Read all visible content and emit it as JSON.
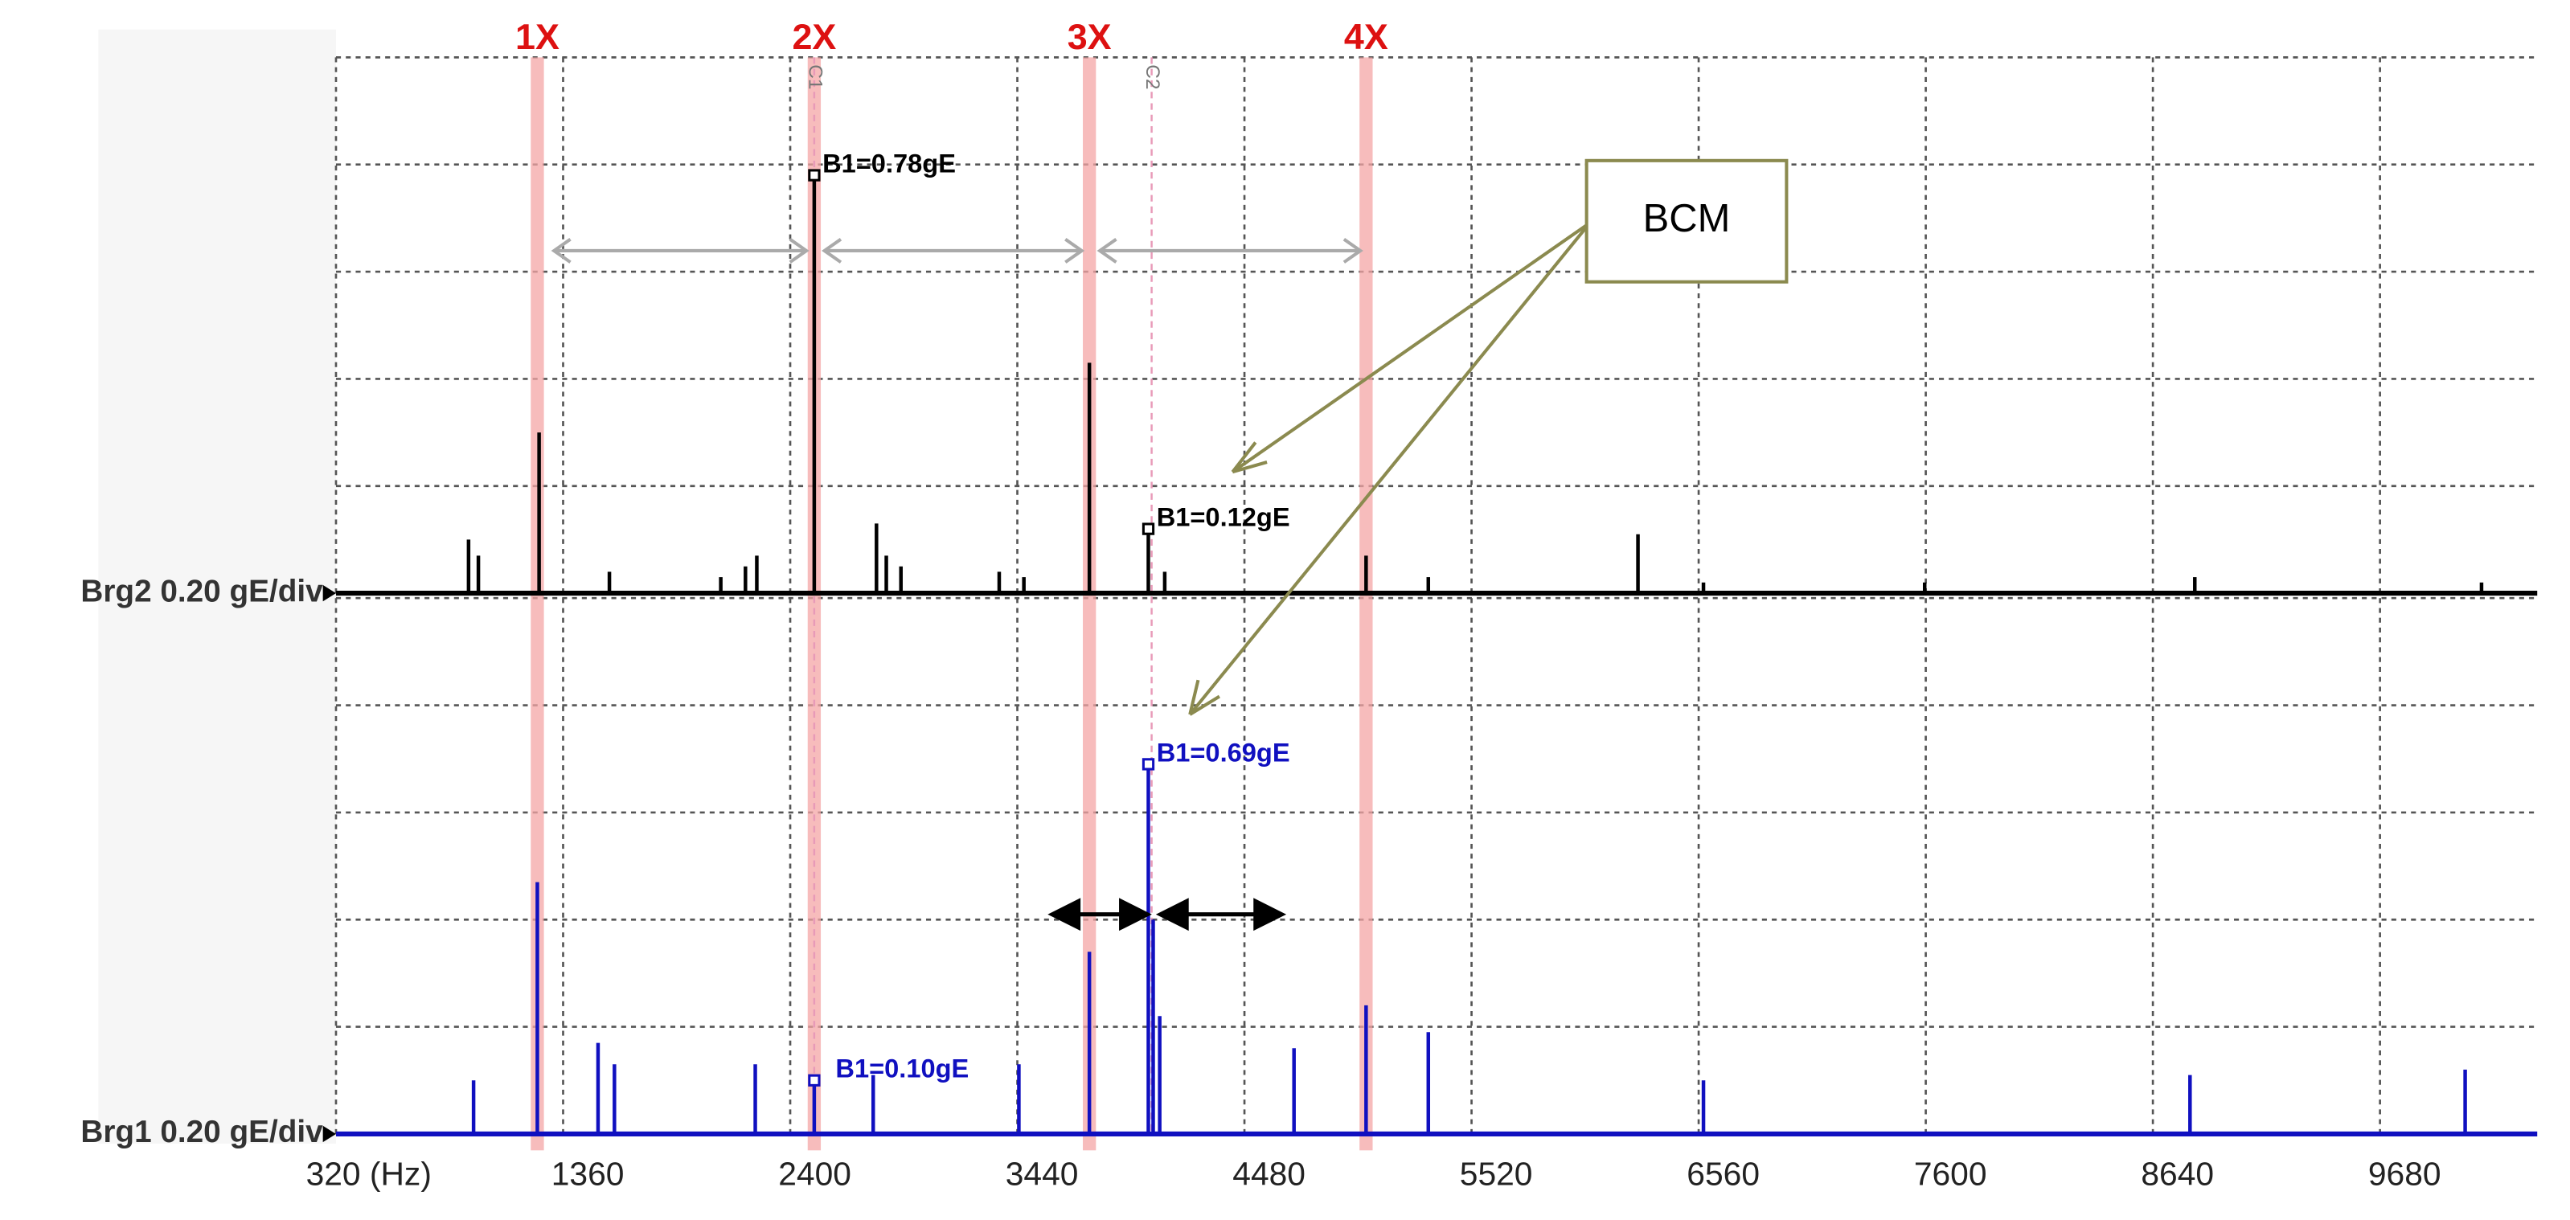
{
  "chart_data": {
    "type": "spectrum",
    "xlim": [
      320,
      10400
    ],
    "xticks": [
      {
        "value": 320,
        "label": "320 (Hz)"
      },
      1360,
      2400,
      3440,
      4480,
      5520,
      6560,
      7600,
      8640,
      9680
    ],
    "ylim": [
      0,
      1.0
    ],
    "yticks": [
      0,
      0.2,
      0.4,
      0.6,
      0.8,
      1.0
    ],
    "grid": true,
    "harmonics": {
      "labels": [
        "1X",
        "2X",
        "3X",
        "4X"
      ],
      "x": [
        1242,
        2510,
        3770,
        5037
      ],
      "color": "#f4a6a6"
    },
    "cursors": {
      "labels": [
        "C1",
        "C2"
      ],
      "x": [
        2510,
        4055
      ]
    },
    "callout": "BCM",
    "series": [
      {
        "name": "Brg2 0.20 gE/div",
        "color": "#000000",
        "x": [
          927,
          972,
          1250,
          1572,
          2082,
          2195,
          2247,
          2510,
          2795,
          2840,
          2907,
          3357,
          3470,
          3770,
          4040,
          4115,
          5037,
          5322,
          6282,
          6582,
          7595,
          8832,
          10145
        ],
        "values": [
          0.1,
          0.07,
          0.3,
          0.04,
          0.03,
          0.05,
          0.07,
          0.78,
          0.13,
          0.07,
          0.05,
          0.04,
          0.03,
          0.43,
          0.12,
          0.04,
          0.07,
          0.03,
          0.11,
          0.02,
          0.02,
          0.03,
          0.02
        ],
        "value_labels": [
          null,
          null,
          null,
          null,
          null,
          null,
          null,
          "B1=0.78gE",
          null,
          null,
          null,
          null,
          null,
          null,
          "B1=0.12gE",
          null,
          null,
          null,
          null,
          null,
          null,
          null,
          null
        ]
      },
      {
        "name": "Brg1 0.20 gE/div",
        "color": "#1010c0",
        "x": [
          950,
          1242,
          1520,
          1595,
          2240,
          2510,
          2780,
          3447,
          3770,
          4040,
          4062,
          4092,
          4707,
          5037,
          5322,
          6582,
          8810,
          10070
        ],
        "values": [
          0.1,
          0.47,
          0.17,
          0.13,
          0.13,
          0.1,
          0.11,
          0.13,
          0.34,
          0.69,
          0.4,
          0.22,
          0.16,
          0.24,
          0.19,
          0.1,
          0.11,
          0.12
        ],
        "value_labels": [
          null,
          null,
          null,
          null,
          null,
          "B1=0.10gE",
          null,
          null,
          null,
          "B1=0.69gE",
          null,
          null,
          null,
          null,
          null,
          null,
          null,
          null
        ]
      }
    ]
  }
}
